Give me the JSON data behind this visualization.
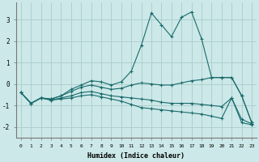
{
  "xlabel": "Humidex (Indice chaleur)",
  "background_color": "#cce8e8",
  "grid_color": "#aacccc",
  "line_color": "#1a6b6b",
  "x": [
    0,
    1,
    2,
    3,
    4,
    5,
    6,
    7,
    8,
    9,
    10,
    11,
    12,
    13,
    14,
    15,
    16,
    17,
    18,
    19,
    20,
    21,
    22,
    23
  ],
  "series": [
    [
      -0.4,
      -0.9,
      -0.65,
      -0.7,
      -0.55,
      -0.25,
      -0.05,
      0.15,
      0.1,
      -0.05,
      0.1,
      0.6,
      1.8,
      3.3,
      2.75,
      2.2,
      3.1,
      3.35,
      2.1,
      0.3,
      0.3,
      0.3,
      -0.55,
      -1.8
    ],
    [
      -0.4,
      -0.9,
      -0.65,
      -0.7,
      -0.55,
      -0.35,
      -0.15,
      -0.05,
      -0.15,
      -0.25,
      -0.2,
      -0.05,
      0.05,
      0.0,
      -0.05,
      -0.05,
      0.05,
      0.15,
      0.2,
      0.3,
      0.3,
      0.3,
      -0.55,
      -1.8
    ],
    [
      -0.4,
      -0.9,
      -0.65,
      -0.75,
      -0.65,
      -0.55,
      -0.4,
      -0.35,
      -0.45,
      -0.55,
      -0.6,
      -0.65,
      -0.7,
      -0.75,
      -0.85,
      -0.9,
      -0.9,
      -0.9,
      -0.95,
      -1.0,
      -1.05,
      -0.65,
      -1.65,
      -1.85
    ],
    [
      -0.4,
      -0.9,
      -0.65,
      -0.75,
      -0.7,
      -0.65,
      -0.55,
      -0.5,
      -0.6,
      -0.7,
      -0.8,
      -0.95,
      -1.1,
      -1.15,
      -1.2,
      -1.25,
      -1.3,
      -1.35,
      -1.4,
      -1.5,
      -1.6,
      -0.65,
      -1.8,
      -1.9
    ]
  ],
  "ylim": [
    -2.5,
    3.8
  ],
  "yticks": [
    -2,
    -1,
    0,
    1,
    2,
    3
  ],
  "xlim": [
    -0.5,
    23.5
  ]
}
